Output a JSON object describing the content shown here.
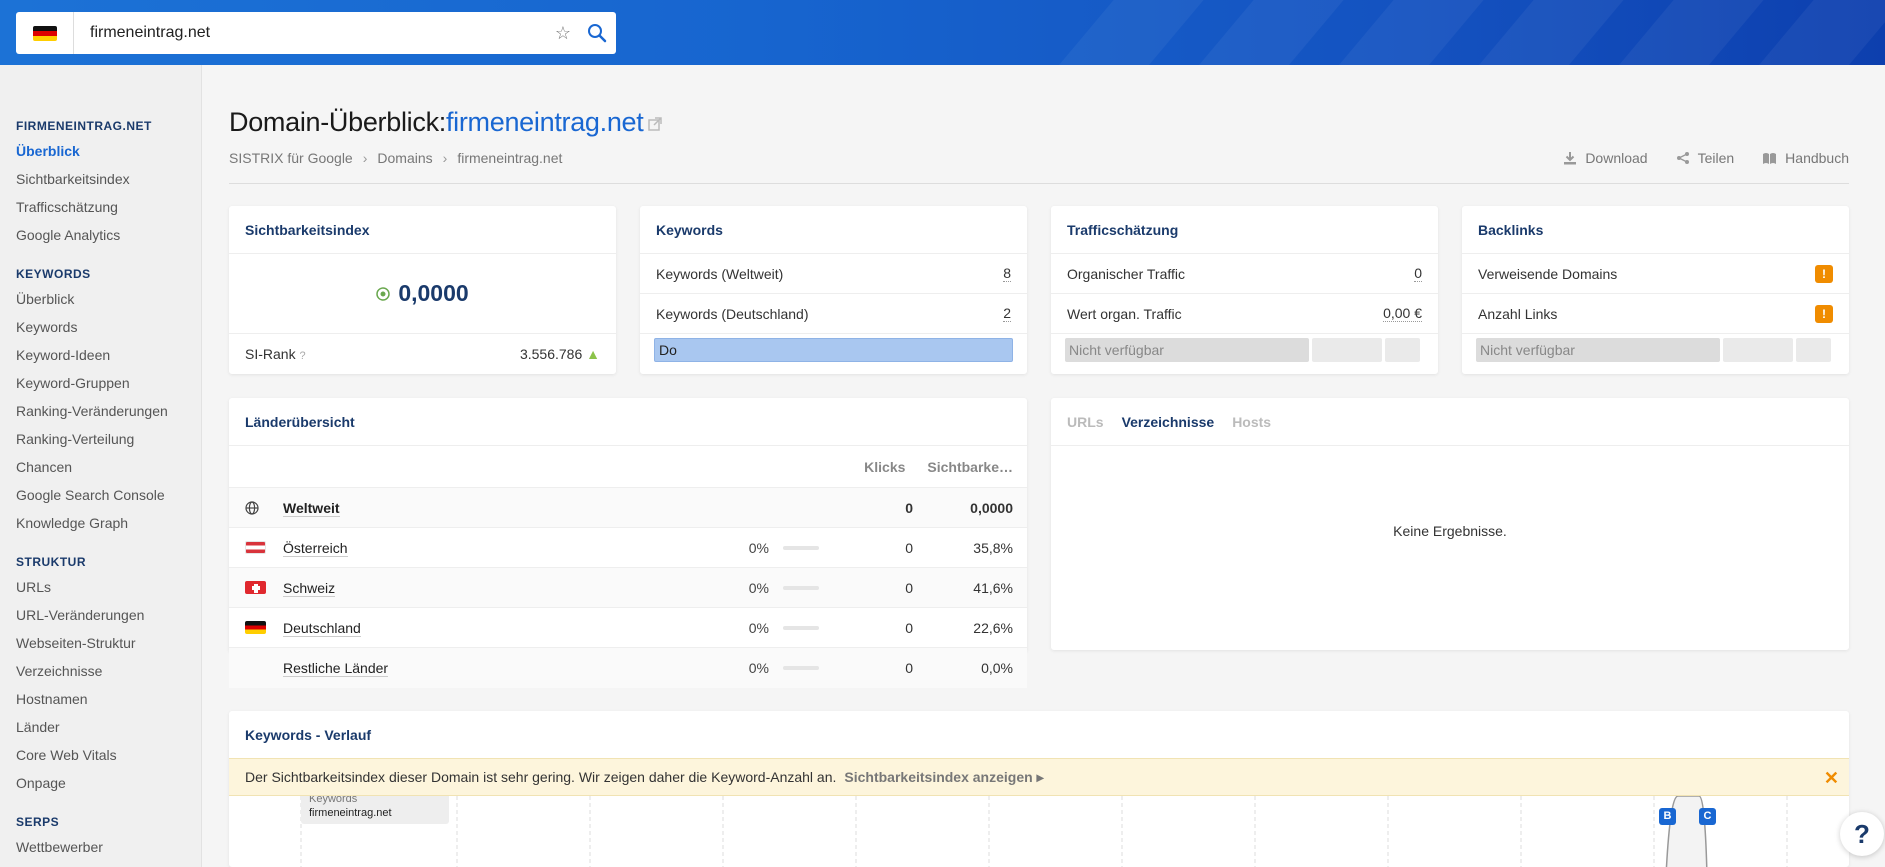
{
  "search": {
    "value": "firmeneintrag.net"
  },
  "sidebar": {
    "sections": [
      {
        "title": "FIRMENEINTRAG.NET",
        "items": [
          "Überblick",
          "Sichtbarkeitsindex",
          "Trafficschätzung",
          "Google Analytics"
        ]
      },
      {
        "title": "KEYWORDS",
        "items": [
          "Überblick",
          "Keywords",
          "Keyword-Ideen",
          "Keyword-Gruppen",
          "Ranking-Veränderungen",
          "Ranking-Verteilung",
          "Chancen",
          "Google Search Console",
          "Knowledge Graph"
        ]
      },
      {
        "title": "STRUKTUR",
        "items": [
          "URLs",
          "URL-Veränderungen",
          "Webseiten-Struktur",
          "Verzeichnisse",
          "Hostnamen",
          "Länder",
          "Core Web Vitals",
          "Onpage"
        ]
      },
      {
        "title": "SERPS",
        "items": [
          "Wettbewerber"
        ]
      }
    ]
  },
  "header": {
    "title_prefix": "Domain-Überblick:",
    "title_domain": "firmeneintrag.net",
    "breadcrumb": [
      "SISTRIX für Google",
      "Domains",
      "firmeneintrag.net"
    ],
    "actions": {
      "download": "Download",
      "share": "Teilen",
      "manual": "Handbuch"
    }
  },
  "cards": {
    "si": {
      "title": "Sichtbarkeitsindex",
      "value": "0,0000",
      "rank_label": "SI-Rank",
      "rank_help": "?",
      "rank_value": "3.556.786"
    },
    "keywords": {
      "title": "Keywords",
      "rows": [
        {
          "label": "Keywords (Weltweit)",
          "value": "8"
        },
        {
          "label": "Keywords (Deutschland)",
          "value": "2"
        }
      ],
      "bar_label": "Do"
    },
    "traffic": {
      "title": "Trafficschätzung",
      "rows": [
        {
          "label": "Organischer Traffic",
          "value": "0"
        },
        {
          "label": "Wert organ. Traffic",
          "value": "0,00 €"
        }
      ],
      "na": "Nicht verfügbar"
    },
    "backlinks": {
      "title": "Backlinks",
      "rows": [
        {
          "label": "Verweisende Domains",
          "value": "!"
        },
        {
          "label": "Anzahl Links",
          "value": "!"
        }
      ],
      "na": "Nicht verfügbar"
    }
  },
  "countries": {
    "title": "Länderübersicht",
    "col_clicks": "Klicks",
    "col_si": "Sichtbarke…",
    "rows": [
      {
        "name": "Weltweit",
        "pct": "",
        "clicks": "0",
        "si": "0,0000"
      },
      {
        "name": "Österreich",
        "pct": "0%",
        "clicks": "0",
        "si": "35,8%"
      },
      {
        "name": "Schweiz",
        "pct": "0%",
        "clicks": "0",
        "si": "41,6%"
      },
      {
        "name": "Deutschland",
        "pct": "0%",
        "clicks": "0",
        "si": "22,6%"
      },
      {
        "name": "Restliche Länder",
        "pct": "0%",
        "clicks": "0",
        "si": "0,0%"
      }
    ]
  },
  "tabs_card": {
    "tabs": [
      "URLs",
      "Verzeichnisse",
      "Hosts"
    ],
    "active": "Verzeichnisse",
    "empty": "Keine Ergebnisse."
  },
  "history": {
    "title": "Keywords - Verlauf",
    "notice": "Der Sichtbarkeitsindex dieser Domain ist sehr gering. Wir zeigen daher die Keyword-Anzahl an.",
    "notice_link": "Sichtbarkeitsindex anzeigen",
    "legend_label": "Keywords",
    "legend_domain": "firmeneintrag.net",
    "markers": [
      "B",
      "C"
    ]
  },
  "colors": {
    "accent": "#1967d2",
    "warning": "#f08c00",
    "bar": "#a9c7f0"
  }
}
